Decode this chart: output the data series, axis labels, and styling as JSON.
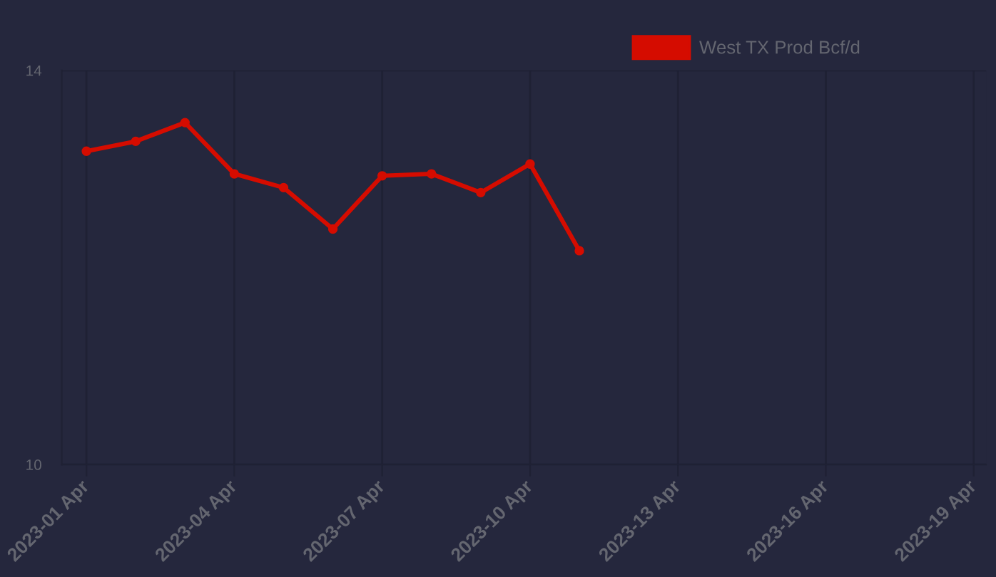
{
  "chart_data": {
    "type": "line",
    "x": [
      "2023-04-01",
      "2023-04-02",
      "2023-04-03",
      "2023-04-04",
      "2023-04-05",
      "2023-04-06",
      "2023-04-07",
      "2023-04-08",
      "2023-04-09",
      "2023-04-10",
      "2023-04-11"
    ],
    "series": [
      {
        "name": "West TX Prod Bcf/d",
        "color": "#d50c00",
        "values": [
          13.18,
          13.28,
          13.47,
          12.95,
          12.81,
          12.39,
          12.93,
          12.95,
          12.76,
          13.05,
          12.17
        ]
      }
    ],
    "xlim": [
      "2023-03-31T12:00",
      "2023-04-19T06:00"
    ],
    "xticks": [
      {
        "value": "2023-04-01",
        "label": "2023-01 Apr"
      },
      {
        "value": "2023-04-04",
        "label": "2023-04 Apr"
      },
      {
        "value": "2023-04-07",
        "label": "2023-07 Apr"
      },
      {
        "value": "2023-04-10",
        "label": "2023-10 Apr"
      },
      {
        "value": "2023-04-13",
        "label": "2023-13 Apr"
      },
      {
        "value": "2023-04-16",
        "label": "2023-16 Apr"
      },
      {
        "value": "2023-04-19",
        "label": "2023-19 Apr"
      }
    ],
    "ylim": [
      10,
      14
    ],
    "yticks": [
      10,
      14
    ],
    "grid": true,
    "legend": "top right",
    "marker": "circle",
    "line_style": "solid"
  }
}
